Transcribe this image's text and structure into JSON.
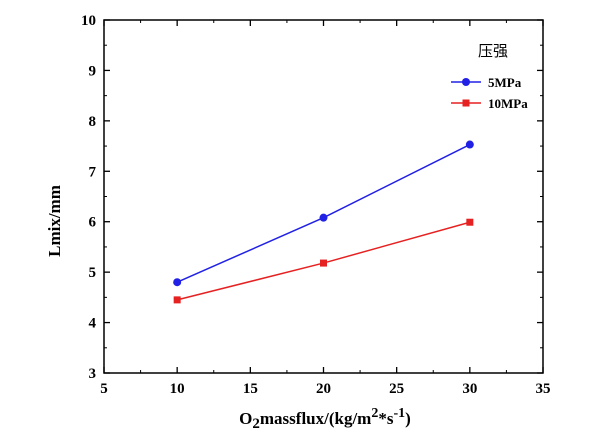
{
  "chart_data": {
    "type": "line",
    "xlabel_main": "O",
    "xlabel_sub": "2",
    "xlabel_rest": "massflux/(kg/m",
    "xlabel_sup1": "2",
    "xlabel_mid": "*s",
    "xlabel_sup2": "-1",
    "xlabel_end": ")",
    "ylabel": "Lmix/mm",
    "xlim": [
      5,
      35
    ],
    "ylim": [
      3,
      10
    ],
    "x_ticks": [
      "5",
      "10",
      "15",
      "20",
      "25",
      "30",
      "35"
    ],
    "y_ticks": [
      "3",
      "4",
      "5",
      "6",
      "7",
      "8",
      "9",
      "10"
    ],
    "legend_title": "压强",
    "legend_position": "top-right",
    "grid": false,
    "series": [
      {
        "name": "5MPa",
        "color": "#2121e6",
        "marker": "circle",
        "x": [
          10,
          20,
          30
        ],
        "y": [
          4.8,
          6.08,
          7.53
        ]
      },
      {
        "name": "10MPa",
        "color": "#e62121",
        "marker": "square",
        "x": [
          10,
          20,
          30
        ],
        "y": [
          4.45,
          5.18,
          5.99
        ]
      }
    ]
  }
}
